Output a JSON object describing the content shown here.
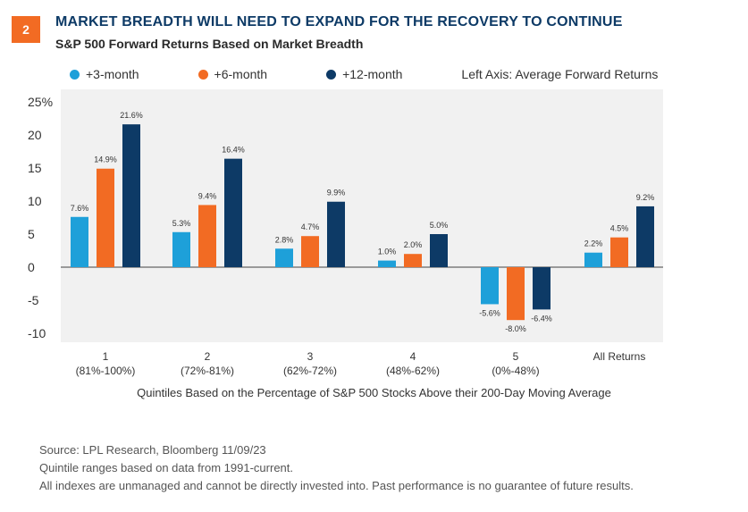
{
  "header": {
    "badge": "2",
    "title": "MARKET BREADTH WILL NEED TO EXPAND FOR THE RECOVERY TO CONTINUE",
    "subtitle": "S&P 500 Forward Returns Based on Market Breadth"
  },
  "legend": {
    "items": [
      {
        "label": "+3-month",
        "color": "#1ea0d9"
      },
      {
        "label": "+6-month",
        "color": "#f26b23"
      },
      {
        "label": "+12-month",
        "color": "#0d3a66"
      }
    ],
    "axis_note": "Left Axis: Average Forward Returns"
  },
  "chart_data": {
    "type": "bar",
    "categories": [
      "1",
      "2",
      "3",
      "4",
      "5",
      "All Returns"
    ],
    "category_sublabels": [
      "(81%-100%)",
      "(72%-81%)",
      "(62%-72%)",
      "(48%-62%)",
      "(0%-48%)",
      ""
    ],
    "series": [
      {
        "name": "+3-month",
        "color": "#1ea0d9",
        "values": [
          7.6,
          5.3,
          2.8,
          1.0,
          -5.6,
          2.2
        ],
        "labels": [
          "7.6%",
          "5.3%",
          "2.8%",
          "1.0%",
          "-5.6%",
          "2.2%"
        ]
      },
      {
        "name": "+6-month",
        "color": "#f26b23",
        "values": [
          14.9,
          9.4,
          4.7,
          2.0,
          -8.0,
          4.5
        ],
        "labels": [
          "14.9%",
          "9.4%",
          "4.7%",
          "2.0%",
          "-8.0%",
          "4.5%"
        ]
      },
      {
        "name": "+12-month",
        "color": "#0d3a66",
        "values": [
          21.6,
          16.4,
          9.9,
          5.0,
          -6.4,
          9.2
        ],
        "labels": [
          "21.6%",
          "16.4%",
          "9.9%",
          "5.0%",
          "-6.4%",
          "9.2%"
        ]
      }
    ],
    "ylim": [
      -10,
      25
    ],
    "yticks": [
      -10,
      -5,
      0,
      5,
      10,
      15,
      20,
      25
    ],
    "ytick_labels": [
      "-10",
      "-5",
      "0",
      "5",
      "10",
      "15",
      "20",
      "25%"
    ],
    "xlabel": "Quintiles Based on the Percentage of S&P 500 Stocks Above their 200-Day Moving Average",
    "plot_background": "#f1f1f1"
  },
  "footnotes": [
    "Source: LPL Research, Bloomberg  11/09/23",
    "Quintile ranges based on data from 1991-current.",
    "All indexes are unmanaged and cannot be directly invested into. Past performance is no guarantee of future results."
  ]
}
